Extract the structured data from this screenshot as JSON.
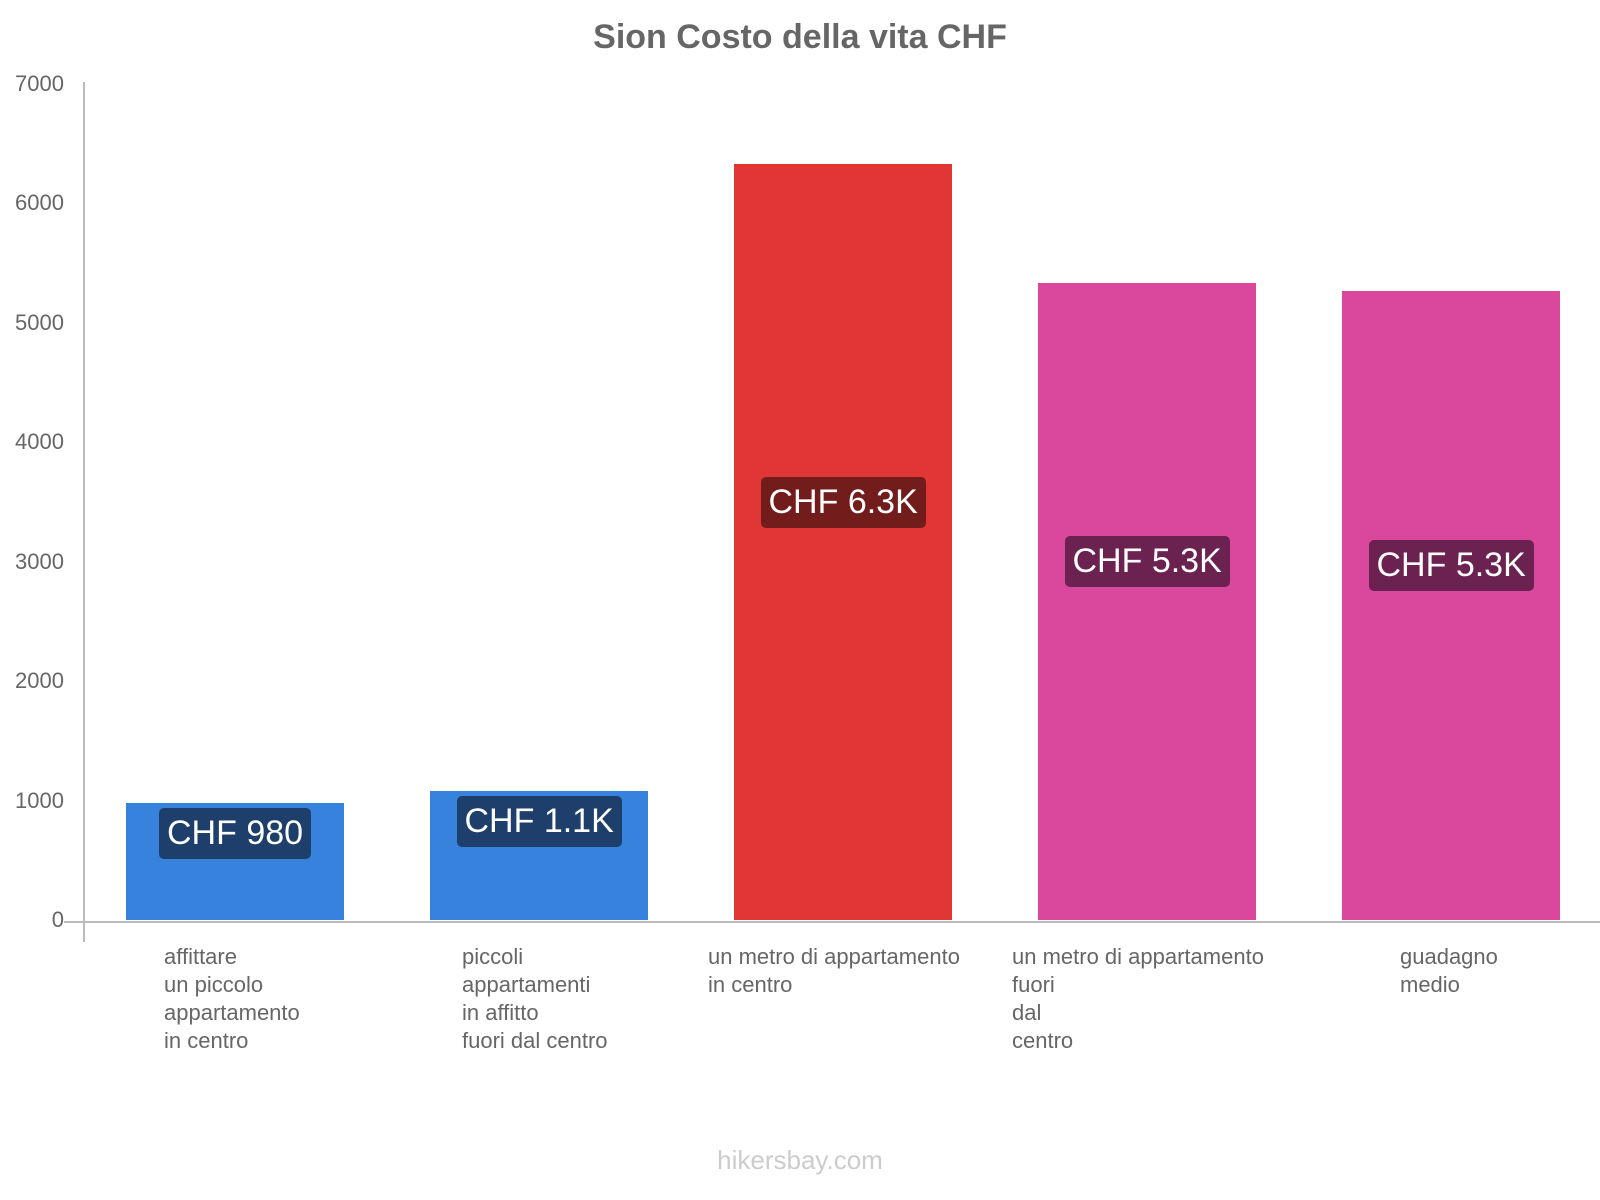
{
  "chart_data": {
    "type": "bar",
    "title": "Sion Costo della vita CHF",
    "xlabel": "",
    "ylabel": "",
    "ylim": [
      0,
      7000
    ],
    "yticks": [
      0,
      1000,
      2000,
      3000,
      4000,
      5000,
      6000,
      7000
    ],
    "grid": false,
    "legend": null,
    "categories": [
      "affittare un piccolo appartamento in centro",
      "piccoli appartamenti in affitto fuori dal centro",
      "un metro di appartamento in centro",
      "un metro di appartamento fuori dal centro",
      "guadagno medio"
    ],
    "values": [
      980,
      1080,
      6330,
      5330,
      5270
    ],
    "data_labels": [
      "CHF 980",
      "CHF 1.1K",
      "CHF 6.3K",
      "CHF 5.3K",
      "CHF 5.3K"
    ],
    "colors": [
      "#3682dc",
      "#3682dc",
      "#e03636",
      "#d9489c",
      "#d9489c"
    ],
    "label_colors": [
      "#1e3f6b",
      "#1e3f6b",
      "#731c1c",
      "#6b2250",
      "#6b2250"
    ]
  },
  "title": "Sion Costo della vita CHF",
  "yticks": [
    "7000",
    "6000",
    "5000",
    "4000",
    "3000",
    "2000",
    "1000",
    "0"
  ],
  "xlabels": [
    "affittare\nun piccolo\nappartamento\nin centro",
    "piccoli\nappartamenti\nin affitto\nfuori dal centro",
    "un metro di appartamento\nin centro",
    "un metro di appartamento\nfuori\ndal\ncentro",
    "guadagno\nmedio"
  ],
  "footer": "hikersbay.com"
}
